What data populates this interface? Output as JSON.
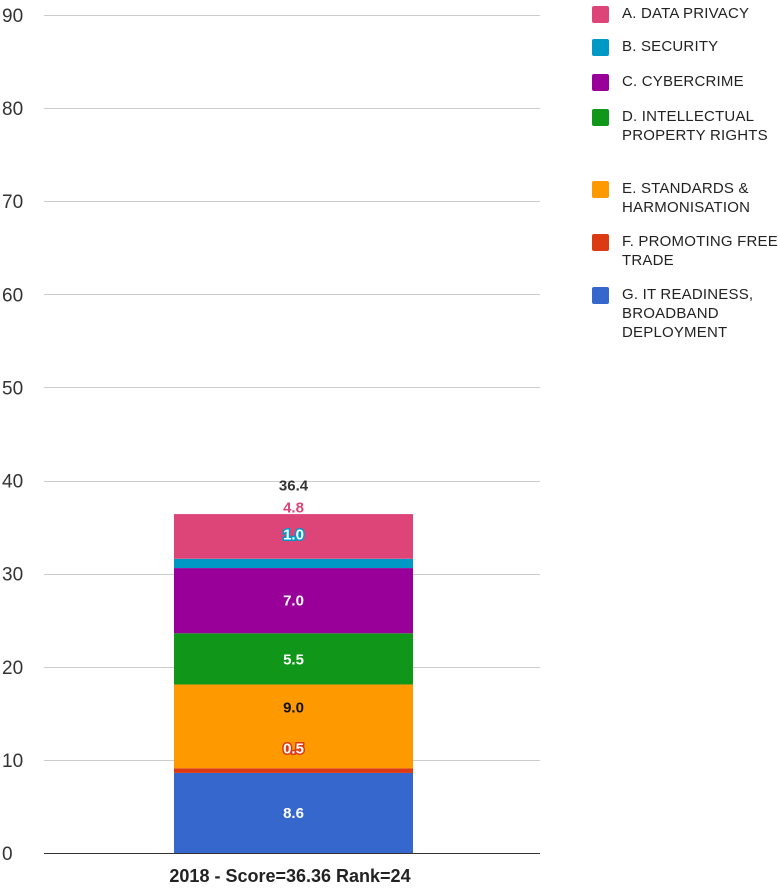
{
  "chart_data": {
    "type": "bar",
    "stacked": true,
    "categories": [
      "2018 - Score=36.36 Rank=24"
    ],
    "ylim": [
      0,
      90
    ],
    "yticks": [
      0,
      10,
      20,
      30,
      40,
      50,
      60,
      70,
      80,
      90
    ],
    "grid": true,
    "legend_placement": "right",
    "total": "36.4",
    "series": [
      {
        "name": "G. IT READINESS, BROADBAND DEPLOYMENT",
        "values": [
          8.6
        ],
        "label": "8.6",
        "color": "#3567cc"
      },
      {
        "name": "F. PROMOTING FREE TRADE",
        "values": [
          0.5
        ],
        "label": "0.5",
        "color": "#dc3a12"
      },
      {
        "name": "E. STANDARDS & HARMONISATION",
        "values": [
          9.0
        ],
        "label": "9.0",
        "color": "#fe9a00"
      },
      {
        "name": "D. INTELLECTUAL PROPERTY RIGHTS",
        "values": [
          5.5
        ],
        "label": "5.5",
        "color": "#109619"
      },
      {
        "name": "C. CYBERCRIME",
        "values": [
          7.0
        ],
        "label": "7.0",
        "color": "#990099"
      },
      {
        "name": "B. SECURITY",
        "values": [
          1.0
        ],
        "label": "1.0",
        "color": "#0099c6"
      },
      {
        "name": "A. DATA PRIVACY",
        "values": [
          4.8
        ],
        "label": "4.8",
        "color": "#dd4477"
      }
    ]
  }
}
